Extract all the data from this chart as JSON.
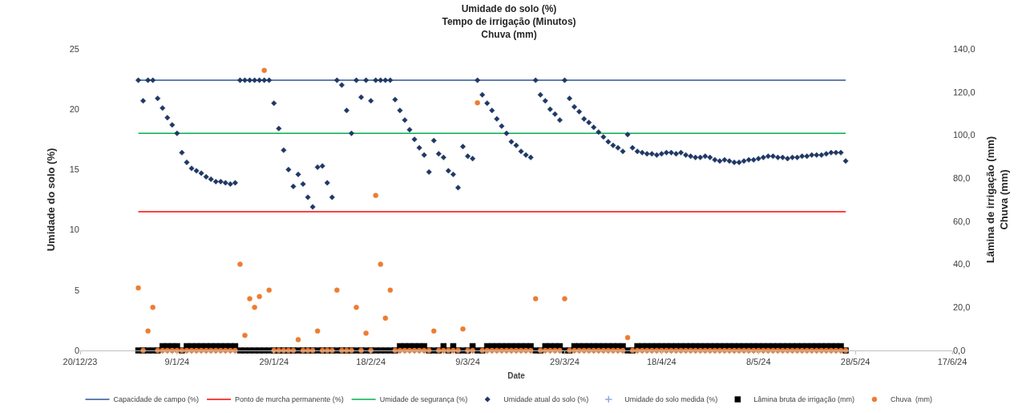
{
  "chart_data": {
    "type": "scatter",
    "title": "Umidade do solo (%)\nTempo de irrigação (Minutos)\nChuva (mm)",
    "xlabel": "Date",
    "ylabel": "Umidade do solo (%)",
    "y2label": "Lâmina de irrigação (mm)\nChuva (mm)",
    "x": [
      "2024-01-01",
      "2024-01-02",
      "2024-01-03",
      "2024-01-04",
      "2024-01-05",
      "2024-01-06",
      "2024-01-07",
      "2024-01-08",
      "2024-01-09",
      "2024-01-10",
      "2024-01-11",
      "2024-01-12",
      "2024-01-13",
      "2024-01-14",
      "2024-01-15",
      "2024-01-16",
      "2024-01-17",
      "2024-01-18",
      "2024-01-19",
      "2024-01-20",
      "2024-01-21",
      "2024-01-22",
      "2024-01-23",
      "2024-01-24",
      "2024-01-25",
      "2024-01-26",
      "2024-01-27",
      "2024-01-28",
      "2024-01-29",
      "2024-01-30",
      "2024-01-31",
      "2024-02-01",
      "2024-02-02",
      "2024-02-03",
      "2024-02-04",
      "2024-02-05",
      "2024-02-06",
      "2024-02-07",
      "2024-02-08",
      "2024-02-09",
      "2024-02-10",
      "2024-02-11",
      "2024-02-12",
      "2024-02-13",
      "2024-02-14",
      "2024-02-15",
      "2024-02-16",
      "2024-02-17",
      "2024-02-18",
      "2024-02-19",
      "2024-02-20",
      "2024-02-21",
      "2024-02-22",
      "2024-02-23",
      "2024-02-24",
      "2024-02-25",
      "2024-02-26",
      "2024-02-27",
      "2024-02-28",
      "2024-02-29",
      "2024-03-01",
      "2024-03-02",
      "2024-03-03",
      "2024-03-04",
      "2024-03-05",
      "2024-03-06",
      "2024-03-07",
      "2024-03-08",
      "2024-03-09",
      "2024-03-10",
      "2024-03-11",
      "2024-03-12",
      "2024-03-13",
      "2024-03-14",
      "2024-03-15",
      "2024-03-16",
      "2024-03-17",
      "2024-03-18",
      "2024-03-19",
      "2024-03-20",
      "2024-03-21",
      "2024-03-22",
      "2024-03-23",
      "2024-03-24",
      "2024-03-25",
      "2024-03-26",
      "2024-03-27",
      "2024-03-28",
      "2024-03-29",
      "2024-03-30",
      "2024-03-31",
      "2024-04-01",
      "2024-04-02",
      "2024-04-03",
      "2024-04-04",
      "2024-04-05",
      "2024-04-06",
      "2024-04-07",
      "2024-04-08",
      "2024-04-09",
      "2024-04-10",
      "2024-04-11",
      "2024-04-12",
      "2024-04-13",
      "2024-04-14",
      "2024-04-15",
      "2024-04-16",
      "2024-04-17",
      "2024-04-18",
      "2024-04-19",
      "2024-04-20",
      "2024-04-21",
      "2024-04-22",
      "2024-04-23",
      "2024-04-24",
      "2024-04-25",
      "2024-04-26",
      "2024-04-27",
      "2024-04-28",
      "2024-04-29",
      "2024-04-30",
      "2024-05-01",
      "2024-05-02",
      "2024-05-03",
      "2024-05-04",
      "2024-05-05",
      "2024-05-06",
      "2024-05-07",
      "2024-05-08",
      "2024-05-09",
      "2024-05-10",
      "2024-05-11",
      "2024-05-12",
      "2024-05-13",
      "2024-05-14",
      "2024-05-15",
      "2024-05-16",
      "2024-05-17",
      "2024-05-18",
      "2024-05-19",
      "2024-05-20",
      "2024-05-21",
      "2024-05-22",
      "2024-05-23",
      "2024-05-24",
      "2024-05-25",
      "2024-05-26"
    ],
    "xlim": [
      "2023-12-20",
      "2024-06-17"
    ],
    "xticks": [
      {
        "value": "2023-12-20",
        "label": "20/12/23"
      },
      {
        "value": "2024-01-09",
        "label": "9/1/24"
      },
      {
        "value": "2024-01-29",
        "label": "29/1/24"
      },
      {
        "value": "2024-02-18",
        "label": "18/2/24"
      },
      {
        "value": "2024-03-09",
        "label": "9/3/24"
      },
      {
        "value": "2024-03-29",
        "label": "29/3/24"
      },
      {
        "value": "2024-04-18",
        "label": "18/4/24"
      },
      {
        "value": "2024-05-08",
        "label": "8/5/24"
      },
      {
        "value": "2024-05-28",
        "label": "28/5/24"
      },
      {
        "value": "2024-06-17",
        "label": "17/6/24"
      }
    ],
    "ylim": [
      0,
      25
    ],
    "yticks": [
      0,
      5,
      10,
      15,
      20,
      25
    ],
    "y2lim": [
      0,
      140
    ],
    "y2ticks": [
      {
        "value": 0,
        "label": "0,0"
      },
      {
        "value": 20,
        "label": "20,0"
      },
      {
        "value": 40,
        "label": "40,0"
      },
      {
        "value": 60,
        "label": "60,0"
      },
      {
        "value": 80,
        "label": "80,0"
      },
      {
        "value": 100,
        "label": "100,0"
      },
      {
        "value": 120,
        "label": "120,0"
      },
      {
        "value": 140,
        "label": "140,0"
      }
    ],
    "legend": "bottom",
    "series": [
      {
        "name": "Capacidade de campo (%)",
        "type": "line",
        "marker": "none",
        "color": "#2f5597",
        "x": [
          "2024-01-01",
          "2024-05-26"
        ],
        "values": [
          22.4,
          22.4
        ]
      },
      {
        "name": "Ponto de murcha permanente (%)",
        "type": "line",
        "marker": "none",
        "color": "#ff0000",
        "x": [
          "2024-01-01",
          "2024-05-26"
        ],
        "values": [
          11.5,
          11.5
        ]
      },
      {
        "name": "Umidade de segurança (%)",
        "type": "line",
        "marker": "none",
        "color": "#00b050",
        "x": [
          "2024-01-01",
          "2024-05-26"
        ],
        "values": [
          18.0,
          18.0
        ]
      },
      {
        "name": "Umidade atual do solo (%)",
        "marker": "diamond",
        "color": "#1f3864",
        "values": [
          22.4,
          20.7,
          22.4,
          22.4,
          20.9,
          20.1,
          19.3,
          18.7,
          18.0,
          16.4,
          15.6,
          15.1,
          14.9,
          14.7,
          14.4,
          14.2,
          14.0,
          14.0,
          13.9,
          13.8,
          13.9,
          22.4,
          22.4,
          22.4,
          22.4,
          22.4,
          22.4,
          22.4,
          20.5,
          18.4,
          16.6,
          15.0,
          13.6,
          14.6,
          13.8,
          12.7,
          11.9,
          15.2,
          15.3,
          13.9,
          12.7,
          22.4,
          22.0,
          19.9,
          18.0,
          22.4,
          21.0,
          22.4,
          20.7,
          22.4,
          22.4,
          22.4,
          22.4,
          20.8,
          19.9,
          19.1,
          18.3,
          17.5,
          16.8,
          16.2,
          14.8,
          17.4,
          16.3,
          16.0,
          14.9,
          14.6,
          13.5,
          16.9,
          16.1,
          15.9,
          22.4,
          21.2,
          20.5,
          19.9,
          19.2,
          18.6,
          18.0,
          17.3,
          17.0,
          16.5,
          16.2,
          16.0,
          22.4,
          21.2,
          20.7,
          20.0,
          19.6,
          19.1,
          22.4,
          20.9,
          20.2,
          19.8,
          19.2,
          18.9,
          18.5,
          18.1,
          17.7,
          17.3,
          17.0,
          16.8,
          16.5,
          17.9,
          16.8,
          16.5,
          16.4,
          16.3,
          16.3,
          16.2,
          16.3,
          16.4,
          16.4,
          16.3,
          16.4,
          16.2,
          16.1,
          16.0,
          16.0,
          16.1,
          16.0,
          15.8,
          15.7,
          15.8,
          15.7,
          15.6,
          15.6,
          15.7,
          15.8,
          15.8,
          15.9,
          16.0,
          16.1,
          16.1,
          16.0,
          16.0,
          15.9,
          16.0,
          16.0,
          16.1,
          16.1,
          16.2,
          16.2,
          16.2,
          16.3,
          16.4,
          16.4,
          16.4,
          15.7
        ]
      },
      {
        "name": "Umidade do solo medida (%)",
        "marker": "cross",
        "color": "#8faadc",
        "values": [
          null,
          null,
          null,
          null,
          null,
          0,
          0,
          0,
          0,
          null,
          0,
          0,
          0,
          0,
          0,
          0,
          0,
          0,
          0,
          0,
          0,
          null,
          null,
          null,
          null,
          null,
          null,
          null,
          null,
          null,
          null,
          null,
          null,
          null,
          null,
          null,
          null,
          null,
          null,
          null,
          null,
          null,
          null,
          null,
          null,
          null,
          null,
          null,
          null,
          null,
          null,
          null,
          null,
          null,
          0,
          0,
          0,
          0,
          0,
          0,
          null,
          null,
          null,
          0,
          null,
          0,
          null,
          null,
          null,
          0,
          null,
          null,
          0,
          0,
          0,
          0,
          0,
          0,
          0,
          0,
          0,
          0,
          null,
          null,
          0,
          0,
          0,
          0,
          null,
          null,
          0,
          0,
          0,
          0,
          0,
          0,
          0,
          0,
          0,
          0,
          0,
          null,
          null,
          0,
          0,
          0,
          0,
          0,
          0,
          0,
          0,
          0,
          0,
          0,
          0,
          0,
          0,
          0,
          0,
          0,
          0,
          0,
          0,
          0,
          0,
          0,
          0,
          0,
          0,
          0,
          0,
          0,
          0,
          0,
          0,
          0,
          0,
          0,
          0,
          0,
          0,
          0,
          0,
          0,
          0,
          0,
          null
        ]
      },
      {
        "name": "Lâmina bruta de irrigação (mm)",
        "marker": "square",
        "axis": "y2",
        "color": "#000000",
        "values": [
          0,
          0,
          0,
          0,
          0,
          2,
          2,
          2,
          2,
          0,
          2,
          2,
          2,
          2,
          2,
          2,
          2,
          2,
          2,
          2,
          2,
          0,
          0,
          0,
          0,
          0,
          0,
          0,
          0,
          0,
          0,
          0,
          0,
          0,
          0,
          0,
          0,
          0,
          0,
          0,
          0,
          0,
          0,
          0,
          0,
          0,
          0,
          0,
          0,
          0,
          0,
          0,
          0,
          0,
          2,
          2,
          2,
          2,
          2,
          2,
          0,
          0,
          0,
          2,
          0,
          2,
          0,
          0,
          0,
          2,
          0,
          0,
          2,
          2,
          2,
          2,
          2,
          2,
          2,
          2,
          2,
          2,
          0,
          0,
          2,
          2,
          2,
          2,
          0,
          0,
          2,
          2,
          2,
          2,
          2,
          2,
          2,
          2,
          2,
          2,
          2,
          0,
          0,
          2,
          2,
          2,
          2,
          2,
          2,
          2,
          2,
          2,
          2,
          2,
          2,
          2,
          2,
          2,
          2,
          2,
          2,
          2,
          2,
          2,
          2,
          2,
          2,
          2,
          2,
          2,
          2,
          2,
          2,
          2,
          2,
          2,
          2,
          2,
          2,
          2,
          2,
          2,
          2,
          2,
          2,
          2,
          0
        ]
      },
      {
        "name": "Chuva  (mm)",
        "marker": "circle",
        "axis": "y2",
        "color": "#ed7d31",
        "values": [
          29,
          0,
          9,
          20,
          0,
          0,
          0,
          0,
          0,
          0,
          0,
          0,
          0,
          0,
          0,
          0,
          0,
          0,
          0,
          0,
          0,
          40,
          7,
          24,
          20,
          25,
          130,
          28,
          0,
          0,
          0,
          0,
          0,
          5,
          0,
          0,
          0,
          9,
          0,
          0,
          0,
          28,
          0,
          0,
          0,
          20,
          0,
          8,
          0,
          72,
          40,
          15,
          28,
          0,
          0,
          0,
          0,
          0,
          0,
          0,
          0,
          9,
          0,
          0,
          0,
          0,
          0,
          10,
          0,
          0,
          115,
          0,
          0,
          0,
          0,
          0,
          0,
          0,
          0,
          0,
          0,
          0,
          24,
          0,
          0,
          0,
          0,
          0,
          24,
          0,
          0,
          0,
          0,
          0,
          0,
          0,
          0,
          0,
          0,
          0,
          0,
          6,
          0,
          0,
          0,
          0,
          0,
          0,
          0,
          0,
          0,
          0,
          0,
          0,
          0,
          0,
          0,
          0,
          0,
          0,
          0,
          0,
          0,
          0,
          0,
          0,
          0,
          0,
          0,
          0,
          0,
          0,
          0,
          0,
          0,
          0,
          0,
          0,
          0,
          0,
          0,
          0,
          0,
          0,
          0,
          0,
          0
        ]
      }
    ]
  }
}
